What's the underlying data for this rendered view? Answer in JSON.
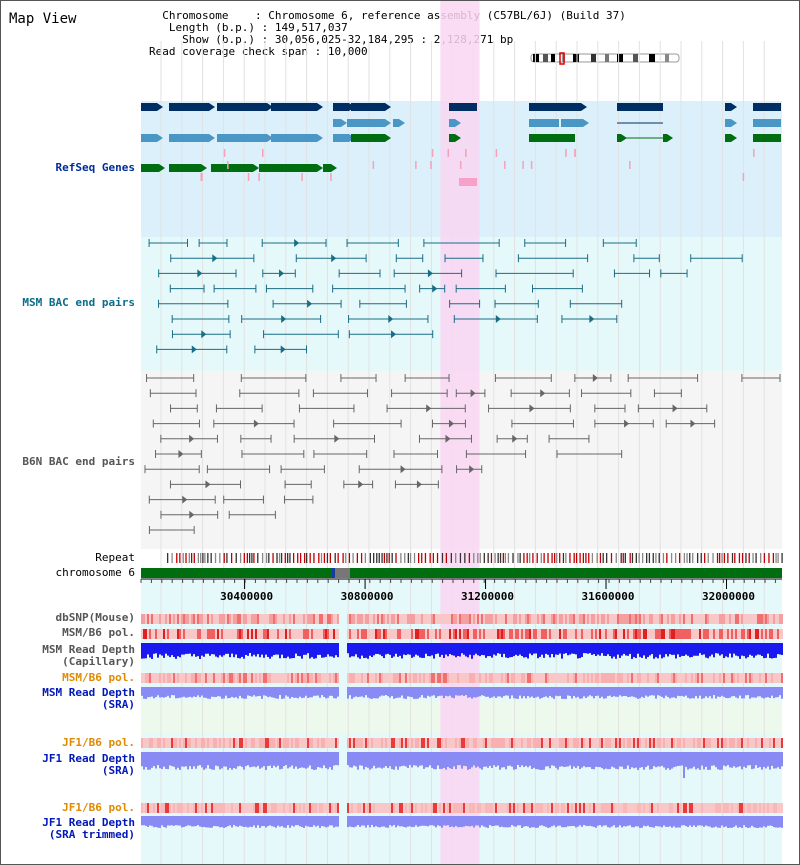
{
  "view": {
    "title": "Map View",
    "info": {
      "chromosome_key": "Chromosome",
      "chromosome_value": "Chromosome 6, reference assembly (C57BL/6J) (Build 37)",
      "length_key": "Length (b.p.)",
      "length_value": "149,517,037",
      "show_key": "Show (b.p.)",
      "show_value": "30,056,025-32,184,295 : 2,128,271 bp",
      "coverage_key": "Read coverage check span",
      "coverage_value": "10,000"
    }
  },
  "tracks": {
    "refseq": "RefSeq Genes",
    "msm_bac": "MSM BAC end pairs",
    "b6n_bac": "B6N BAC end pairs",
    "repeat": "Repeat",
    "chromosome": "chromosome 6",
    "dbsnp": "dbSNP(Mouse)",
    "msm_b6_pol_1": "MSM/B6 pol.",
    "msm_depth_cap_1": "MSM Read Depth",
    "msm_depth_cap_2": "(Capillary)",
    "msm_b6_pol_2": "MSM/B6 pol.",
    "msm_depth_sra_1": "MSM Read Depth",
    "msm_depth_sra_2": "(SRA)",
    "jf1_b6_pol_1": "JF1/B6 pol.",
    "jf1_depth_sra_1": "JF1 Read Depth",
    "jf1_depth_sra_2": "(SRA)",
    "jf1_b6_pol_2": "JF1/B6 pol.",
    "jf1_depth_trim_1": "JF1 Read Depth",
    "jf1_depth_trim_2": "(SRA trimmed)"
  },
  "axis": {
    "ticks": [
      "30400000",
      "30800000",
      "31200000",
      "31600000",
      "32000000"
    ],
    "tick_values": [
      30400000,
      30800000,
      31200000,
      31600000,
      32000000
    ],
    "range_start": 30056025,
    "range_end": 32184295
  },
  "highlight": {
    "start": 31050000,
    "end": 31180000,
    "color": "#f9d6f2"
  },
  "colors": {
    "refseq_bg": "#dbf0fa",
    "msm_bg": "#e6f9fa",
    "b6n_bg": "#f5f5f5",
    "lower_bg": "#e6f9fa",
    "sra_bg": "#eef9ee",
    "gene_dark": "#002d62",
    "gene_mid": "#4a96c4",
    "gene_green": "#006d10",
    "msm_pair": "#1a6d86",
    "b6n_pair": "#666666",
    "depth_capillary": "#1a1af0",
    "depth_sra": "#8a8af5",
    "chrom_bar": "#006d10",
    "pol_red": "#e83b3b"
  }
}
